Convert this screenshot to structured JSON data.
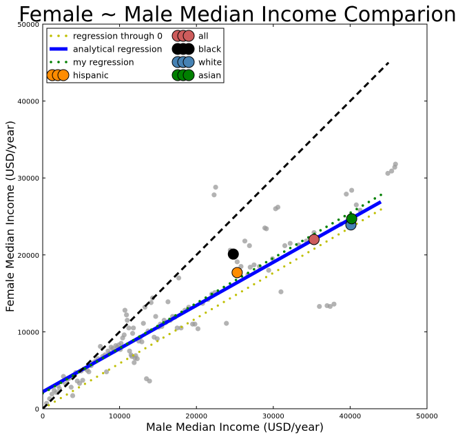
{
  "chart_data": {
    "type": "scatter",
    "title": "Female ~ Male Median Income Comparion",
    "xlabel": "Male Median Income (USD/year)",
    "ylabel": "Female Median Income (USD/year)",
    "xlim": [
      0,
      50000
    ],
    "ylim": [
      0,
      50000
    ],
    "xticks": [
      "0",
      "10000",
      "20000",
      "30000",
      "40000",
      "50000"
    ],
    "yticks": [
      "0",
      "10000",
      "20000",
      "30000",
      "40000",
      "50000"
    ],
    "grid": false,
    "legend_position": "upper-left",
    "background_points": {
      "color": "#999999",
      "points": [
        [
          500,
          700
        ],
        [
          900,
          1300
        ],
        [
          1200,
          1900
        ],
        [
          1500,
          2400
        ],
        [
          1800,
          2100
        ],
        [
          2000,
          3000
        ],
        [
          2200,
          2600
        ],
        [
          2500,
          3500
        ],
        [
          2700,
          4200
        ],
        [
          3000,
          3200
        ],
        [
          3200,
          3800
        ],
        [
          3500,
          4000
        ],
        [
          3700,
          2800
        ],
        [
          3900,
          1700
        ],
        [
          4100,
          4400
        ],
        [
          4300,
          4700
        ],
        [
          4500,
          3600
        ],
        [
          4800,
          3300
        ],
        [
          5000,
          4900
        ],
        [
          5200,
          3700
        ],
        [
          5500,
          5200
        ],
        [
          5800,
          5000
        ],
        [
          6000,
          4800
        ],
        [
          6300,
          5600
        ],
        [
          6600,
          6000
        ],
        [
          6900,
          6200
        ],
        [
          7200,
          6500
        ],
        [
          7500,
          8100
        ],
        [
          7800,
          6800
        ],
        [
          8100,
          7000
        ],
        [
          8300,
          4800
        ],
        [
          8500,
          7500
        ],
        [
          8700,
          7200
        ],
        [
          8900,
          8000
        ],
        [
          9100,
          7800
        ],
        [
          9300,
          7500
        ],
        [
          9500,
          8200
        ],
        [
          9700,
          8000
        ],
        [
          9900,
          8300
        ],
        [
          10100,
          7700
        ],
        [
          10200,
          8500
        ],
        [
          10400,
          9200
        ],
        [
          10600,
          9600
        ],
        [
          10700,
          12800
        ],
        [
          10900,
          12200
        ],
        [
          11000,
          11500
        ],
        [
          11200,
          10500
        ],
        [
          11300,
          7500
        ],
        [
          11500,
          7000
        ],
        [
          11600,
          6800
        ],
        [
          11700,
          9800
        ],
        [
          11800,
          10500
        ],
        [
          11900,
          6000
        ],
        [
          12000,
          6600
        ],
        [
          12100,
          6900
        ],
        [
          12300,
          6500
        ],
        [
          12500,
          8800
        ],
        [
          12700,
          9300
        ],
        [
          12900,
          8700
        ],
        [
          13100,
          11100
        ],
        [
          13300,
          13200
        ],
        [
          13500,
          3900
        ],
        [
          13700,
          10100
        ],
        [
          13900,
          3600
        ],
        [
          14100,
          13800
        ],
        [
          14300,
          14400
        ],
        [
          14500,
          9300
        ],
        [
          14700,
          12000
        ],
        [
          14900,
          9100
        ],
        [
          15100,
          10600
        ],
        [
          15300,
          11000
        ],
        [
          15500,
          10700
        ],
        [
          15800,
          11500
        ],
        [
          16000,
          11200
        ],
        [
          16300,
          13900
        ],
        [
          16600,
          11500
        ],
        [
          16900,
          12000
        ],
        [
          17200,
          11900
        ],
        [
          17500,
          10500
        ],
        [
          17700,
          17000
        ],
        [
          18000,
          10500
        ],
        [
          18500,
          12800
        ],
        [
          19000,
          13200
        ],
        [
          19500,
          11000
        ],
        [
          19800,
          11000
        ],
        [
          20200,
          10400
        ],
        [
          20800,
          13700
        ],
        [
          21500,
          14200
        ],
        [
          22000,
          14900
        ],
        [
          22500,
          28800
        ],
        [
          22300,
          27800
        ],
        [
          22400,
          15100
        ],
        [
          23900,
          11100
        ],
        [
          24400,
          20600
        ],
        [
          24800,
          20100
        ],
        [
          25300,
          19100
        ],
        [
          25800,
          18500
        ],
        [
          26300,
          21800
        ],
        [
          26700,
          17400
        ],
        [
          26900,
          21200
        ],
        [
          27000,
          18400
        ],
        [
          27500,
          18700
        ],
        [
          28200,
          18500
        ],
        [
          28900,
          23500
        ],
        [
          29100,
          23400
        ],
        [
          29400,
          18000
        ],
        [
          29900,
          19500
        ],
        [
          30300,
          26000
        ],
        [
          30600,
          26200
        ],
        [
          31000,
          15200
        ],
        [
          31500,
          21200
        ],
        [
          32200,
          21500
        ],
        [
          33300,
          21300
        ],
        [
          34300,
          21800
        ],
        [
          35300,
          22900
        ],
        [
          36000,
          13300
        ],
        [
          37000,
          13400
        ],
        [
          37400,
          13300
        ],
        [
          37900,
          13600
        ],
        [
          38800,
          24000
        ],
        [
          39500,
          27900
        ],
        [
          40200,
          28400
        ],
        [
          40800,
          26500
        ],
        [
          41300,
          25800
        ],
        [
          44900,
          30600
        ],
        [
          45400,
          30900
        ],
        [
          45800,
          31400
        ],
        [
          45900,
          31800
        ]
      ]
    },
    "lines": [
      {
        "name": "regression through 0",
        "style": "dotted",
        "color": "#bfbf00",
        "points": [
          [
            0,
            0
          ],
          [
            44000,
            25900
          ]
        ]
      },
      {
        "name": "analytical regression",
        "style": "solid-thick",
        "color": "#0000ff",
        "points": [
          [
            0,
            2200
          ],
          [
            44000,
            26900
          ]
        ]
      },
      {
        "name": "my regression",
        "style": "dashed-dots",
        "color": "#008000",
        "points": [
          [
            0,
            2000
          ],
          [
            44000,
            27800
          ]
        ]
      },
      {
        "name": "identity",
        "style": "dashed",
        "color": "#000000",
        "points": [
          [
            0,
            0
          ],
          [
            45000,
            45000
          ]
        ]
      }
    ],
    "groups": [
      {
        "name": "all",
        "color": "#cd5c5c",
        "x": 35300,
        "y": 22000
      },
      {
        "name": "black",
        "color": "#000000",
        "x": 24800,
        "y": 20100
      },
      {
        "name": "white",
        "color": "#4682b4",
        "x": 40100,
        "y": 23900
      },
      {
        "name": "hispanic",
        "color": "#ff8c00",
        "x": 25300,
        "y": 17700
      },
      {
        "name": "asian",
        "color": "#008000",
        "x": 40200,
        "y": 24700
      }
    ]
  }
}
